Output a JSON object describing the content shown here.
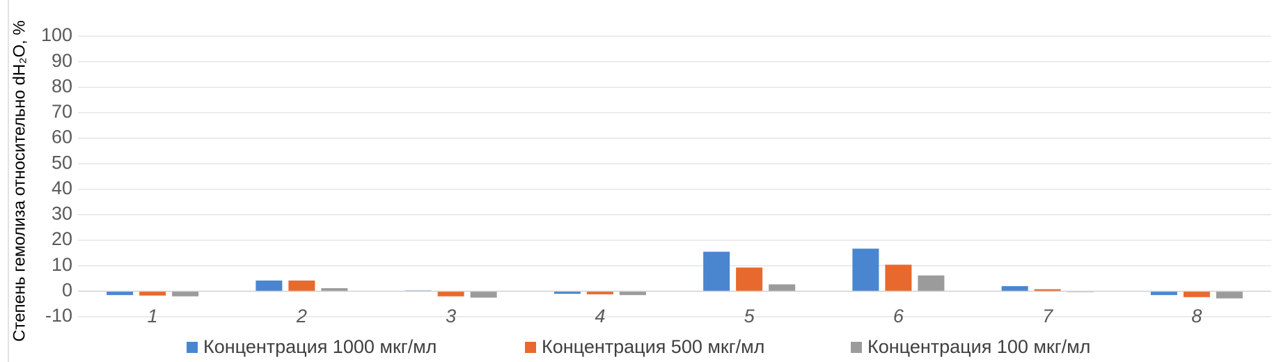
{
  "chart_data": {
    "type": "bar",
    "categories": [
      "1",
      "2",
      "3",
      "4",
      "5",
      "6",
      "7",
      "8"
    ],
    "series": [
      {
        "name": "Концентрация 1000 мкг/мл",
        "color": "#4A86CF",
        "values": [
          -1.5,
          4.2,
          0.3,
          -1.0,
          15.5,
          16.7,
          2.0,
          -1.5
        ]
      },
      {
        "name": "Концентрация 500 мкг/мл",
        "color": "#E8692D",
        "values": [
          -1.7,
          4.2,
          -2.0,
          -1.2,
          9.3,
          10.4,
          0.8,
          -2.3
        ]
      },
      {
        "name": "Концентрация 100 мкг/мл",
        "color": "#9B9B9B",
        "values": [
          -2.0,
          1.2,
          -2.5,
          -1.5,
          2.7,
          6.2,
          -0.3,
          -2.8
        ]
      }
    ],
    "ylabel": "Степень гемолиза относительно dH₂O, %",
    "ylim": [
      -10,
      100
    ],
    "yticks": [
      "100",
      "90",
      "80",
      "70",
      "60",
      "50",
      "40",
      "30",
      "20",
      "10",
      "0",
      "-10"
    ],
    "grid": true,
    "legend": "bottom"
  }
}
